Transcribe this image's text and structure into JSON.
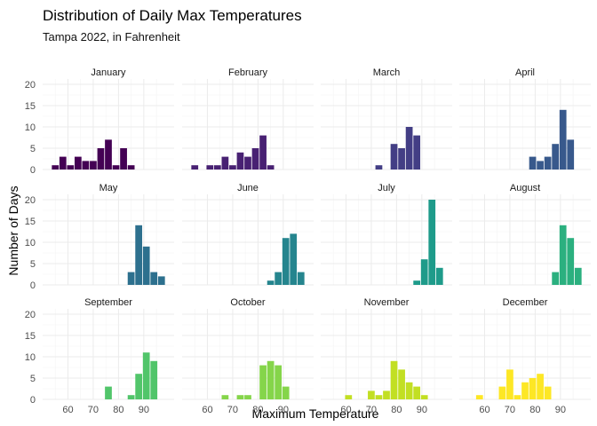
{
  "chart_data": {
    "type": "bar",
    "title": "Distribution of Daily Max Temperatures",
    "subtitle": "Tampa 2022, in Fahrenheit",
    "xlabel": "Maximum Temperature",
    "ylabel": "Number of Days",
    "xlim": [
      50,
      102
    ],
    "ylim": [
      0,
      20
    ],
    "x_ticks": [
      60,
      70,
      80,
      90
    ],
    "y_ticks": [
      0,
      5,
      10,
      15,
      20
    ],
    "grid": true,
    "bin_width": 3,
    "panels": [
      {
        "name": "January",
        "color": "#440154",
        "bins": [
          [
            55,
            1
          ],
          [
            58,
            3
          ],
          [
            61,
            1
          ],
          [
            64,
            3
          ],
          [
            67,
            2
          ],
          [
            70,
            2
          ],
          [
            73,
            5
          ],
          [
            76,
            7
          ],
          [
            79,
            1
          ],
          [
            82,
            5
          ],
          [
            85,
            1
          ]
        ]
      },
      {
        "name": "February",
        "color": "#482173",
        "bins": [
          [
            55,
            1
          ],
          [
            61,
            1
          ],
          [
            64,
            1
          ],
          [
            67,
            3
          ],
          [
            70,
            1
          ],
          [
            73,
            4
          ],
          [
            76,
            3
          ],
          [
            79,
            5
          ],
          [
            82,
            8
          ],
          [
            85,
            1
          ]
        ]
      },
      {
        "name": "March",
        "color": "#433E85",
        "bins": [
          [
            73,
            1
          ],
          [
            79,
            6
          ],
          [
            82,
            5
          ],
          [
            85,
            10
          ],
          [
            88,
            8
          ]
        ]
      },
      {
        "name": "April",
        "color": "#38598C",
        "bins": [
          [
            79,
            3
          ],
          [
            82,
            2
          ],
          [
            85,
            3
          ],
          [
            88,
            6
          ],
          [
            91,
            14
          ],
          [
            94,
            7
          ]
        ]
      },
      {
        "name": "May",
        "color": "#2D708E",
        "bins": [
          [
            85,
            3
          ],
          [
            88,
            14
          ],
          [
            91,
            9
          ],
          [
            94,
            3
          ],
          [
            97,
            2
          ]
        ]
      },
      {
        "name": "June",
        "color": "#25858E",
        "bins": [
          [
            85,
            1
          ],
          [
            88,
            3
          ],
          [
            91,
            11
          ],
          [
            94,
            12
          ],
          [
            97,
            3
          ]
        ]
      },
      {
        "name": "July",
        "color": "#1E9B8A",
        "bins": [
          [
            88,
            1
          ],
          [
            91,
            6
          ],
          [
            94,
            20
          ],
          [
            97,
            4
          ]
        ]
      },
      {
        "name": "August",
        "color": "#2BB07F",
        "bins": [
          [
            88,
            3
          ],
          [
            91,
            14
          ],
          [
            94,
            11
          ],
          [
            97,
            4
          ]
        ]
      },
      {
        "name": "September",
        "color": "#51C56A",
        "bins": [
          [
            76,
            3
          ],
          [
            85,
            1
          ],
          [
            88,
            6
          ],
          [
            91,
            11
          ],
          [
            94,
            9
          ]
        ]
      },
      {
        "name": "October",
        "color": "#85D54A",
        "bins": [
          [
            67,
            1
          ],
          [
            73,
            1
          ],
          [
            76,
            1
          ],
          [
            82,
            8
          ],
          [
            85,
            9
          ],
          [
            88,
            8
          ],
          [
            91,
            3
          ]
        ]
      },
      {
        "name": "November",
        "color": "#C2DF23",
        "bins": [
          [
            61,
            1
          ],
          [
            70,
            2
          ],
          [
            73,
            1
          ],
          [
            76,
            2
          ],
          [
            79,
            9
          ],
          [
            82,
            7
          ],
          [
            85,
            4
          ],
          [
            88,
            3
          ],
          [
            91,
            1
          ]
        ]
      },
      {
        "name": "December",
        "color": "#FDE725",
        "bins": [
          [
            58,
            1
          ],
          [
            67,
            3
          ],
          [
            70,
            7
          ],
          [
            73,
            1
          ],
          [
            76,
            4
          ],
          [
            79,
            5
          ],
          [
            82,
            6
          ],
          [
            85,
            3
          ]
        ]
      }
    ]
  }
}
